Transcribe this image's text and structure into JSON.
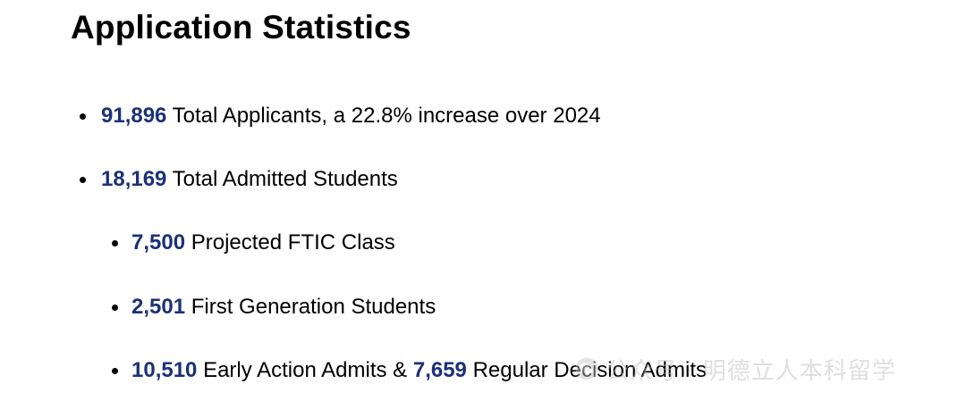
{
  "title": "Application Statistics",
  "items": [
    {
      "value": "91,896",
      "text": " Total Applicants, a 22.8% increase over 2024"
    },
    {
      "value": "18,169",
      "text": " Total Admitted Students"
    },
    {
      "value": "7,500",
      "text": " Projected FTIC Class"
    },
    {
      "value": "2,501",
      "text": " First Generation Students"
    },
    {
      "value": "10,510",
      "text": " Early Action Admits & ",
      "value2": "7,659",
      "text2": " Regular Decision Admits"
    }
  ],
  "watermark": {
    "text": "公众号 · 明德立人本科留学",
    "icon": "wechat-icon"
  },
  "colors": {
    "accent": "#1b3177",
    "text": "#000000",
    "background": "#ffffff"
  }
}
